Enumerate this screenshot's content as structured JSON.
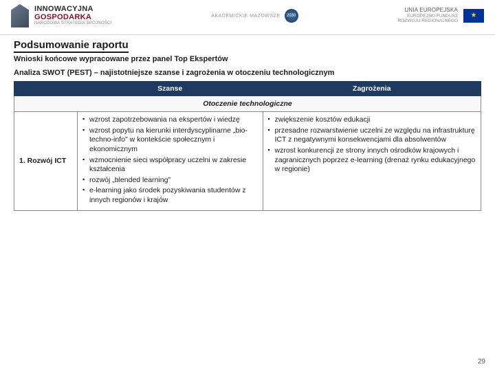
{
  "header": {
    "left": {
      "title": "INNOWACYJNA",
      "sub1": "GOSPODARKA",
      "sub2": "NARODOWA STRATEGIA SPÓJNOŚCI"
    },
    "center": {
      "text": "AKADEMICKIE MAZOWSZE",
      "badge": "2030"
    },
    "right": {
      "line1": "UNIA EUROPEJSKA",
      "line2": "EUROPEJSKI FUNDUSZ",
      "line3": "ROZWOJU REGIONALNEGO"
    }
  },
  "title": "Podsumowanie raportu",
  "subtitle": "Wnioski końcowe wypracowane przez panel Top Ekspertów",
  "analysis": "Analiza SWOT (PEST) – najistotniejsze szanse i zagrożenia w otoczeniu technologicznym",
  "table": {
    "col_szanse": "Szanse",
    "col_zagrozenia": "Zagrożenia",
    "section": "Otoczenie technologiczne",
    "row_label": "1. Rozwój ICT",
    "szanse": [
      "wzrost zapotrzebowania na ekspertów i wiedzę",
      "wzrost popytu na kierunki interdyscyplinarne „bio-techno-info\" w kontekście społecznym i ekonomicznym",
      "wzmocnienie sieci współpracy uczelni w zakresie kształcenia",
      "rozwój „blended learning\"",
      "e-learning jako środek pozyskiwania studentów z innych regionów i krajów"
    ],
    "zagrozenia": [
      "zwiększenie kosztów edukacji",
      "przesadne rozwarstwienie uczelni ze względu na infrastrukturę ICT z negatywnymi konsekwencjami dla absolwentów",
      "wzrost konkurencji ze strony innych ośrodków krajowych i zagranicznych poprzez e-learning (drenaż rynku edukacyjnego w regionie)"
    ]
  },
  "page_number": "29"
}
